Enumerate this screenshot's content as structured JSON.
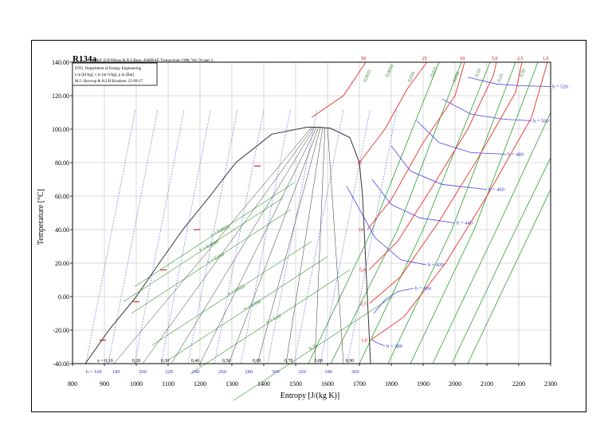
{
  "chart_data": {
    "type": "line",
    "title": "R134a",
    "reference": "Ref: D.P.Wilson & R.S.Basu, ASHRAE Transactions 1988, Vol. 94 part 2.",
    "info_box": [
      "DTU, Department of Energy Engineering",
      "s in [kJ/kg], v in [m^3/kg], p in [Bar]",
      "M.J. Skovrup & H.J.H Knudsen. 25-09-27"
    ],
    "xlabel": "Entropy [J/(kg K)]",
    "ylabel": "Temperature [°C]",
    "xlim": [
      800,
      2300
    ],
    "ylim": [
      -40,
      140
    ],
    "x_ticks": [
      "800",
      "900",
      "1000",
      "1100",
      "1200",
      "1300",
      "1400",
      "1500",
      "1600",
      "1700",
      "1800",
      "1900",
      "2000",
      "2100",
      "2200",
      "2300"
    ],
    "y_ticks": [
      "-40.00",
      "-20.00",
      "0.00",
      "20.00",
      "40.00",
      "60.00",
      "80.00",
      "100.00",
      "120.00",
      "140.00"
    ],
    "grid": true,
    "colors": {
      "saturation": "#333333",
      "quality": "#333333",
      "isobar": "#e8332a",
      "isochore": "#2e9e2e",
      "enthalpy": "#4646e0",
      "isobar_label": "#cc0000",
      "isochore_label": "#2a7a2a",
      "enthalpy_label": "#3333cc"
    },
    "saturation_dome": {
      "liquid": [
        [
          840,
          -40
        ],
        [
          914,
          -20
        ],
        [
          1000,
          0
        ],
        [
          1072,
          20
        ],
        [
          1146,
          40
        ],
        [
          1231,
          60
        ],
        [
          1312,
          80
        ],
        [
          1425,
          97
        ],
        [
          1535,
          101.2
        ]
      ],
      "vapor": [
        [
          1735,
          -40
        ],
        [
          1730,
          -20
        ],
        [
          1725,
          0
        ],
        [
          1720,
          20
        ],
        [
          1715,
          40
        ],
        [
          1710,
          60
        ],
        [
          1700,
          80
        ],
        [
          1670,
          95
        ],
        [
          1610,
          100.5
        ],
        [
          1575,
          101.2
        ],
        [
          1535,
          101.2
        ]
      ]
    },
    "quality_labels": [
      "x = 0,10",
      "0,20",
      "0,30",
      "0,40",
      "0,50",
      "0,60",
      "0,70",
      "0,80",
      "0,90"
    ],
    "quality_label_s": [
      902,
      1000,
      1090,
      1185,
      1283,
      1378,
      1478,
      1572,
      1670
    ],
    "quality_lines": [
      {
        "x": 0.1,
        "s": [
          [
            930,
            -40
          ],
          [
            1550,
            101.2
          ]
        ]
      },
      {
        "x": 0.2,
        "s": [
          [
            1020,
            -40
          ],
          [
            1555,
            101.2
          ]
        ]
      },
      {
        "x": 0.3,
        "s": [
          [
            1110,
            -40
          ],
          [
            1560,
            101.2
          ]
        ]
      },
      {
        "x": 0.4,
        "s": [
          [
            1200,
            -40
          ],
          [
            1566,
            101.2
          ]
        ]
      },
      {
        "x": 0.5,
        "s": [
          [
            1290,
            -40
          ],
          [
            1572,
            101.2
          ]
        ]
      },
      {
        "x": 0.6,
        "s": [
          [
            1380,
            -40
          ],
          [
            1578,
            101.2
          ]
        ]
      },
      {
        "x": 0.7,
        "s": [
          [
            1470,
            -40
          ],
          [
            1585,
            101.2
          ]
        ]
      },
      {
        "x": 0.8,
        "s": [
          [
            1560,
            -40
          ],
          [
            1592,
            101.2
          ]
        ]
      },
      {
        "x": 0.9,
        "s": [
          [
            1650,
            -40
          ],
          [
            1600,
            101.2
          ]
        ]
      }
    ],
    "enthalpy_labels": [
      {
        "label": "h = 160",
        "s": 867
      },
      {
        "label": "180",
        "s": 937
      },
      {
        "label": "200",
        "s": 1020
      },
      {
        "label": "220",
        "s": 1103
      },
      {
        "label": "240",
        "s": 1187
      },
      {
        "label": "260",
        "s": 1270
      },
      {
        "label": "280",
        "s": 1353
      },
      {
        "label": "300",
        "s": 1437
      },
      {
        "label": "320",
        "s": 1520
      },
      {
        "label": "340",
        "s": 1603
      },
      {
        "label": "360",
        "s": 1687
      }
    ],
    "enthalpy_vapor_curves": [
      {
        "label": "h = 380",
        "points": [
          [
            1740,
            -26
          ],
          [
            1760,
            -28
          ],
          [
            1780,
            -29.5
          ]
        ]
      },
      {
        "label": "h = 400",
        "points": [
          [
            1745,
            -10
          ],
          [
            1780,
            -2
          ],
          [
            1820,
            3
          ],
          [
            1870,
            5
          ]
        ]
      },
      {
        "label": "h = 420",
        "points": [
          [
            1660,
            66
          ],
          [
            1750,
            35
          ],
          [
            1830,
            22
          ],
          [
            1910,
            19
          ]
        ]
      },
      {
        "label": "h = 440",
        "points": [
          [
            1740,
            70
          ],
          [
            1800,
            55
          ],
          [
            1890,
            47
          ],
          [
            2000,
            44
          ]
        ]
      },
      {
        "label": "h = 460",
        "points": [
          [
            1800,
            90
          ],
          [
            1860,
            75
          ],
          [
            1960,
            67
          ],
          [
            2100,
            64
          ]
        ]
      },
      {
        "label": "h = 480",
        "points": [
          [
            1880,
            105
          ],
          [
            1950,
            92
          ],
          [
            2050,
            86
          ],
          [
            2160,
            85
          ]
        ]
      },
      {
        "label": "h = 500",
        "points": [
          [
            1960,
            118
          ],
          [
            2050,
            109
          ],
          [
            2150,
            106
          ],
          [
            2240,
            105
          ]
        ]
      },
      {
        "label": "h = 520",
        "points": [
          [
            2040,
            131
          ],
          [
            2130,
            127
          ],
          [
            2200,
            126
          ],
          [
            2300,
            125.5
          ]
        ]
      }
    ],
    "isobars": [
      {
        "label": "50",
        "labels_on_top": true,
        "points": [
          [
            1550,
            107
          ],
          [
            1650,
            120
          ],
          [
            1720,
            140
          ]
        ]
      },
      {
        "label": "25",
        "labels_on_top": true,
        "points": [
          [
            1700,
            80
          ],
          [
            1780,
            100
          ],
          [
            1850,
            124
          ],
          [
            1912,
            140
          ]
        ]
      },
      {
        "label": "10",
        "labels_on_top": true,
        "points": [
          [
            1725,
            40
          ],
          [
            1800,
            58
          ],
          [
            1900,
            92
          ],
          [
            2000,
            120
          ],
          [
            2030,
            140
          ]
        ]
      },
      {
        "label": "5,0",
        "labels_on_top": true,
        "points": [
          [
            1730,
            16
          ],
          [
            1820,
            33
          ],
          [
            1930,
            66
          ],
          [
            2040,
            100
          ],
          [
            2120,
            132
          ],
          [
            2130,
            140
          ]
        ]
      },
      {
        "label": "2,5",
        "labels_on_top": true,
        "points": [
          [
            1732,
            -4
          ],
          [
            1830,
            12
          ],
          [
            1950,
            45
          ],
          [
            2070,
            82
          ],
          [
            2190,
            122
          ],
          [
            2210,
            140
          ]
        ]
      },
      {
        "label": "1,0",
        "labels_on_top": true,
        "points": [
          [
            1735,
            -26
          ],
          [
            1840,
            -12
          ],
          [
            1970,
            20
          ],
          [
            2100,
            60
          ],
          [
            2240,
            107
          ],
          [
            2290,
            140
          ]
        ]
      }
    ],
    "isobar_dome_labels": [
      "25",
      "10",
      "5,0",
      "2,5",
      "1,0"
    ],
    "isochores": [
      {
        "label": "0,0025",
        "points": [
          [
            1540,
            -40
          ],
          [
            1740,
            40
          ],
          [
            1950,
            140
          ]
        ]
      },
      {
        "label": "0,0050",
        "points": [
          [
            1610,
            -40
          ],
          [
            1820,
            40
          ],
          [
            2020,
            140
          ]
        ]
      },
      {
        "label": "0,010",
        "points": [
          [
            1700,
            -40
          ],
          [
            1900,
            40
          ],
          [
            2110,
            140
          ]
        ]
      },
      {
        "label": "0,025",
        "points": [
          [
            1790,
            -40
          ],
          [
            1990,
            40
          ],
          [
            2190,
            140
          ]
        ]
      },
      {
        "label": "0,050",
        "points": [
          [
            1860,
            -40
          ],
          [
            2060,
            40
          ],
          [
            2260,
            140
          ]
        ]
      },
      {
        "label": "0,10",
        "points": [
          [
            1930,
            -40
          ],
          [
            2130,
            40
          ],
          [
            2300,
            110
          ]
        ]
      },
      {
        "label": "0,25",
        "points": [
          [
            1990,
            -40
          ],
          [
            2190,
            40
          ],
          [
            2300,
            83
          ]
        ]
      },
      {
        "label": "0,50",
        "points": [
          [
            2040,
            -40
          ],
          [
            2240,
            40
          ],
          [
            2300,
            64
          ]
        ]
      }
    ],
    "isochore_liquid_labels": [
      "v = 0,0025",
      "v = 0,0050",
      "v = 0,010",
      "v = 0,025",
      "v = 0,050",
      "v = 0,10",
      "0,25"
    ],
    "isochore_top_labels": [
      "0,0025",
      "0,0050",
      "0,010",
      "0,025",
      "0,050",
      "0,10",
      "0,25",
      "0,50"
    ]
  }
}
